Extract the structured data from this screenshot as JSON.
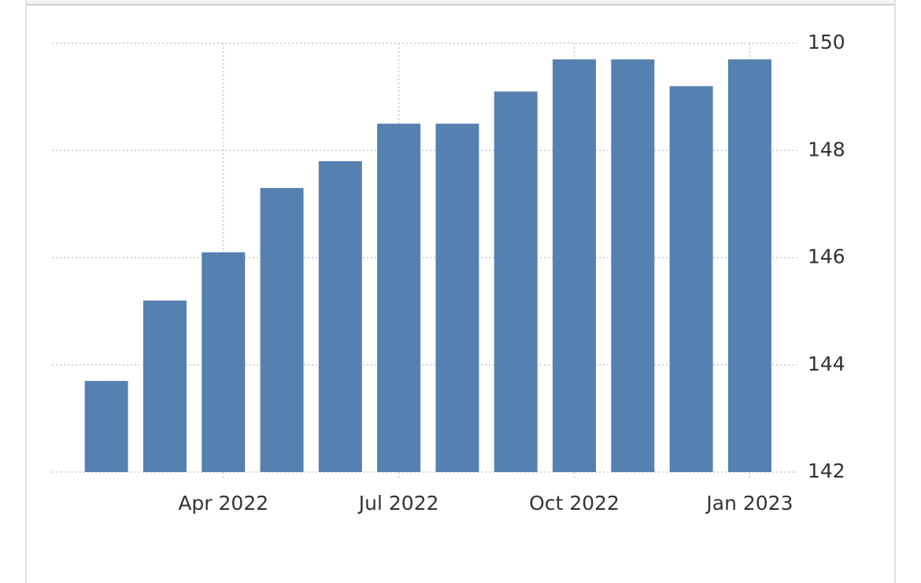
{
  "chart_data": {
    "type": "bar",
    "categories": [
      null,
      null,
      "Apr 2022",
      null,
      null,
      "Jul 2022",
      null,
      null,
      "Oct 2022",
      null,
      null,
      "Jan 2023"
    ],
    "values": [
      143.7,
      145.2,
      146.1,
      147.3,
      147.8,
      148.5,
      148.5,
      149.1,
      149.7,
      149.7,
      149.2,
      149.7
    ],
    "color": "#5580b0",
    "ylim": [
      142,
      150
    ],
    "yticks": [
      142,
      144,
      146,
      148,
      150
    ],
    "grid": true
  }
}
